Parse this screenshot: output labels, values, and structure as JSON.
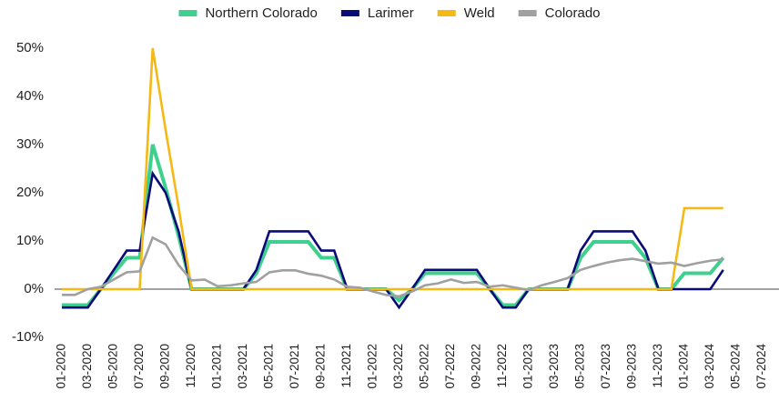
{
  "chart_data": {
    "type": "line",
    "categories": [
      "01-2020",
      null,
      "03-2020",
      null,
      "05-2020",
      null,
      "07-2020",
      null,
      "09-2020",
      null,
      "11-2020",
      null,
      "01-2021",
      null,
      "03-2021",
      null,
      "05-2021",
      null,
      "07-2021",
      null,
      "09-2021",
      null,
      "11-2021",
      null,
      "01-2022",
      null,
      "03-2022",
      null,
      "05-2022",
      null,
      "07-2022",
      null,
      "09-2022",
      null,
      "11-2022",
      null,
      "01-2023",
      null,
      "03-2023",
      null,
      "05-2023",
      null,
      "07-2023",
      null,
      "09-2023",
      null,
      "11-2023",
      null,
      "01-2024",
      null,
      "03-2024",
      null,
      "05-2024",
      null,
      "07-2024"
    ],
    "series": [
      {
        "name": "Northern Colorado",
        "color": "#3fcf8e",
        "values": [
          -3.3,
          -3.3,
          -3.3,
          0,
          3.3,
          6.5,
          6.5,
          30,
          21,
          11,
          0,
          0,
          0,
          0,
          0,
          3.3,
          9.8,
          9.8,
          9.8,
          9.8,
          6.5,
          6.5,
          0,
          0,
          0,
          0,
          -2.3,
          0,
          3.3,
          3.3,
          3.3,
          3.3,
          3.3,
          0,
          -3.3,
          -3.3,
          0,
          0,
          0,
          0,
          6.5,
          9.8,
          9.8,
          9.8,
          9.8,
          6.5,
          0,
          0,
          3.3,
          3.3,
          3.3,
          6.5,
          null,
          null,
          null
        ]
      },
      {
        "name": "Larimer",
        "color": "#0a0a78",
        "values": [
          -3.8,
          -3.8,
          -3.8,
          0,
          4,
          8,
          8,
          24,
          20,
          12,
          0,
          0,
          0,
          0,
          0,
          4,
          12,
          12,
          12,
          12,
          8,
          8,
          0,
          0,
          0,
          0,
          -3.8,
          0,
          4,
          4,
          4,
          4,
          4,
          0,
          -3.8,
          -3.8,
          0,
          0,
          0,
          0,
          8,
          12,
          12,
          12,
          12,
          8,
          0,
          0,
          0,
          0,
          0,
          4,
          null,
          null,
          null
        ]
      },
      {
        "name": "Weld",
        "color": "#f5b914",
        "values": [
          0,
          0,
          0,
          0,
          0,
          0,
          0,
          50,
          33,
          17,
          0,
          0,
          0,
          0,
          0,
          0,
          0,
          0,
          0,
          0,
          0,
          0,
          0,
          0,
          0,
          0,
          0,
          0,
          0,
          0,
          0,
          0,
          0,
          0,
          0,
          0,
          0,
          0,
          0,
          0,
          0,
          0,
          0,
          0,
          0,
          0,
          0,
          0,
          16.8,
          16.8,
          16.8,
          16.8,
          null,
          null,
          null
        ]
      },
      {
        "name": "Colorado",
        "color": "#a0a0a0",
        "values": [
          -1.2,
          -1.2,
          0,
          0.5,
          2,
          3.5,
          3.7,
          10.7,
          9.3,
          5,
          1.8,
          2,
          0.6,
          0.8,
          1.2,
          1.5,
          3.5,
          3.9,
          3.9,
          3.2,
          2.8,
          2,
          0.5,
          0.3,
          -0.5,
          -1.2,
          -1.5,
          -0.5,
          0.8,
          1.2,
          2,
          1.3,
          1.5,
          0.5,
          0.8,
          0.3,
          -0.2,
          0.8,
          1.5,
          2.3,
          4,
          4.8,
          5.5,
          6,
          6.3,
          5.8,
          5.3,
          5.5,
          4.8,
          5.4,
          5.9,
          6.2,
          null,
          null,
          null
        ]
      }
    ],
    "ylim": [
      -10,
      50
    ],
    "yticks": [
      {
        "value": -10,
        "label": "-10%"
      },
      {
        "value": 0,
        "label": "0%"
      },
      {
        "value": 10,
        "label": "10%"
      },
      {
        "value": 20,
        "label": "20%"
      },
      {
        "value": 30,
        "label": "30%"
      },
      {
        "value": 40,
        "label": "40%"
      },
      {
        "value": 50,
        "label": "50%"
      }
    ],
    "grid": false,
    "legend": "top"
  }
}
